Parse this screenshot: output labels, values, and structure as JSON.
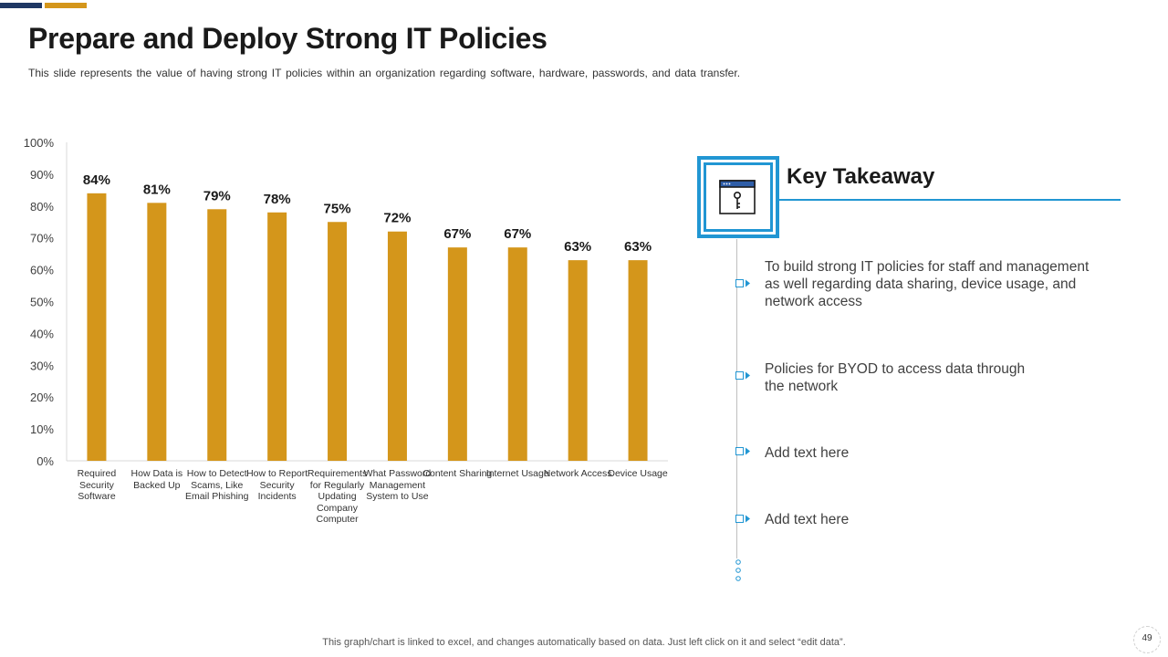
{
  "slide": {
    "title": "Prepare and Deploy Strong IT Policies",
    "subtitle": "This slide represents the value of having strong IT policies within an organization regarding software, hardware, passwords, and data transfer.",
    "footnote": "This graph/chart is linked to excel, and changes automatically based on data. Just left click on it and select “edit data”.",
    "page_number": "49",
    "accent_colors": [
      "#1f3864",
      "#d4961b"
    ]
  },
  "chart_data": {
    "type": "bar",
    "title": "",
    "xlabel": "",
    "ylabel": "",
    "ylim": [
      0,
      100
    ],
    "yticks": [
      "0%",
      "10%",
      "20%",
      "30%",
      "40%",
      "50%",
      "60%",
      "70%",
      "80%",
      "90%",
      "100%"
    ],
    "categories": [
      "Required Security Software",
      "How Data is Backed Up",
      "How to Detect Scams, Like Email Phishing",
      "How to Report Security Incidents",
      "Requirements for Regularly Updating Company Computer",
      "What Password Management System to Use",
      "Content Sharing",
      "Internet Usage",
      "Network Access",
      "Device Usage"
    ],
    "values": [
      84,
      81,
      79,
      78,
      75,
      72,
      67,
      67,
      63,
      63
    ],
    "data_labels": [
      "84%",
      "81%",
      "79%",
      "78%",
      "75%",
      "72%",
      "67%",
      "67%",
      "63%",
      "63%"
    ],
    "bar_color": "#d4961b",
    "grid": false
  },
  "key_takeaway": {
    "title": "Key Takeaway",
    "icon": "browser-key-icon",
    "accent_color": "#2196d3",
    "points": [
      "To build strong IT policies for staff and management as well regarding data sharing, device usage, and network access",
      "Policies for BYOD to access data through the network",
      "Add text here",
      "Add text here"
    ]
  }
}
